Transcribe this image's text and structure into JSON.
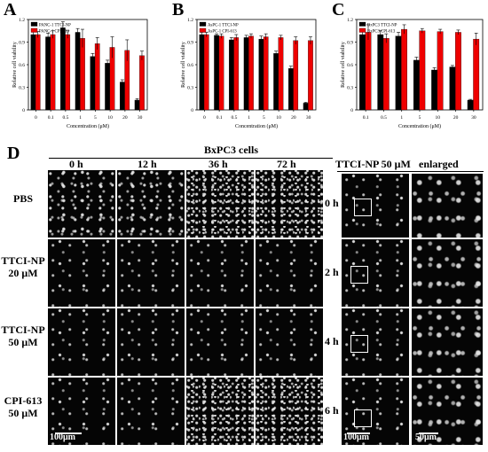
{
  "chart_data": [
    {
      "type": "bar",
      "panel": "A",
      "ylabel": "Relative cell viability",
      "xlabel": "Concentration (μM)",
      "categories": [
        "0",
        "0.1",
        "0.5",
        "1",
        "5",
        "10",
        "20",
        "30"
      ],
      "ylim": [
        0,
        1.2
      ],
      "yticks": [
        "0",
        "0.3",
        "0.6",
        "0.9",
        "1.2"
      ],
      "series": [
        {
          "name": "PANC-1  TTCI-NP",
          "color": "#000000",
          "values": [
            1.0,
            0.97,
            1.09,
            1.03,
            0.71,
            0.62,
            0.37,
            0.13
          ],
          "errors": [
            0.05,
            0.05,
            0.08,
            0.05,
            0.04,
            0.04,
            0.03,
            0.02
          ]
        },
        {
          "name": "PANC-1  CPI-613",
          "color": "#ee0000",
          "values": [
            1.0,
            1.0,
            1.0,
            0.95,
            0.88,
            0.83,
            0.79,
            0.72
          ],
          "errors": [
            0.04,
            0.05,
            0.05,
            0.12,
            0.08,
            0.14,
            0.14,
            0.06
          ]
        }
      ]
    },
    {
      "type": "bar",
      "panel": "B",
      "ylabel": "Relative cell viability",
      "xlabel": "Concentration (μM)",
      "categories": [
        "0",
        "0.1",
        "0.5",
        "1",
        "5",
        "10",
        "20",
        "30"
      ],
      "ylim": [
        0,
        1.2
      ],
      "yticks": [
        "0",
        "0.3",
        "0.6",
        "0.9",
        "1.2"
      ],
      "series": [
        {
          "name": "AsPC-1 TTCI-NP",
          "color": "#000000",
          "values": [
            1.0,
            0.99,
            0.93,
            0.96,
            0.94,
            0.75,
            0.55,
            0.09
          ],
          "errors": [
            0.03,
            0.02,
            0.03,
            0.03,
            0.04,
            0.03,
            0.03,
            0.01
          ]
        },
        {
          "name": "AsPC-1 CPI-613",
          "color": "#ee0000",
          "values": [
            1.0,
            0.98,
            0.96,
            0.98,
            0.97,
            0.96,
            0.92,
            0.92
          ],
          "errors": [
            0.03,
            0.03,
            0.04,
            0.03,
            0.04,
            0.03,
            0.05,
            0.05
          ]
        }
      ]
    },
    {
      "type": "bar",
      "panel": "C",
      "ylabel": "Relative cell viability",
      "xlabel": "Concentration (μM)",
      "categories": [
        "0.1",
        "0.5",
        "1",
        "5",
        "10",
        "20",
        "30"
      ],
      "ylim": [
        0,
        1.2
      ],
      "yticks": [
        "0",
        "0.3",
        "0.6",
        "0.9",
        "1.2"
      ],
      "series": [
        {
          "name": "BxPC3 TTCI-NP",
          "color": "#000000",
          "values": [
            1.0,
            1.0,
            0.98,
            0.66,
            0.53,
            0.57,
            0.13
          ],
          "errors": [
            0.08,
            0.05,
            0.05,
            0.04,
            0.03,
            0.02,
            0.01
          ]
        },
        {
          "name": "BxPC3 CPI-613",
          "color": "#ee0000",
          "values": [
            1.03,
            0.95,
            1.07,
            1.05,
            1.04,
            1.03,
            0.94
          ],
          "errors": [
            0.1,
            0.06,
            0.06,
            0.03,
            0.03,
            0.03,
            0.08
          ]
        }
      ]
    }
  ],
  "panel_letters": {
    "a": "A",
    "b": "B",
    "c": "C",
    "d": "D"
  },
  "panel_d": {
    "title": "BxPC3 cells",
    "time_headers": [
      "0 h",
      "12 h",
      "36 h",
      "72 h"
    ],
    "row_labels": [
      {
        "line1": "PBS",
        "line2": ""
      },
      {
        "line1": "TTCI-NP",
        "line2": "20 μM"
      },
      {
        "line1": "TTCI-NP",
        "line2": "50 μM"
      },
      {
        "line1": "CPI-613",
        "line2": "50 μM"
      }
    ],
    "right_title": "TTCI-NP 50 μM",
    "enlarged_title": "enlarged",
    "right_times": [
      "0 h",
      "2 h",
      "4 h",
      "6 h"
    ],
    "scalebar_1": "100μm",
    "scalebar_2": "100μm",
    "scalebar_3": "50μm"
  }
}
